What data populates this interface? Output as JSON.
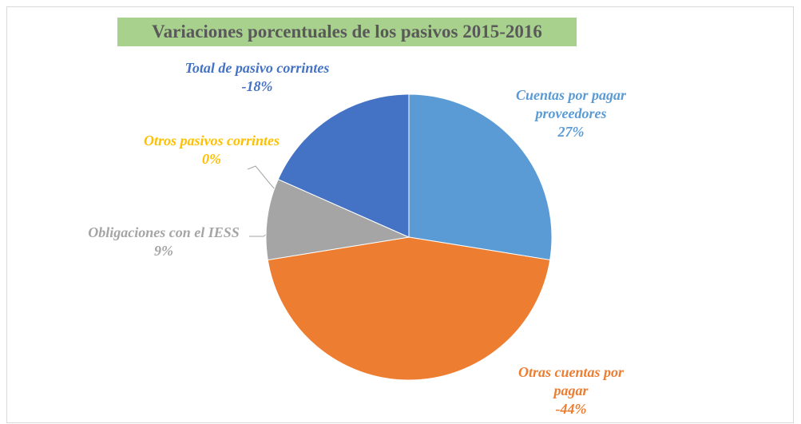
{
  "chart_data": {
    "type": "pie",
    "title": "Variaciones porcentuales de los pasivos 2015-2016",
    "categories": [
      "Cuentas por pagar proveedores",
      "Otras cuentas por pagar",
      "Obligaciones con el IESS",
      "Otros pasivos corrintes",
      "Total de pasivo corrintes"
    ],
    "values": [
      27,
      -44,
      9,
      0,
      -18
    ],
    "value_labels": [
      "27%",
      "-44%",
      "9%",
      "0%",
      "-18%"
    ],
    "colors": [
      "#5b9bd5",
      "#ed7d31",
      "#a5a5a5",
      "#ffc000",
      "#4472c4"
    ]
  }
}
